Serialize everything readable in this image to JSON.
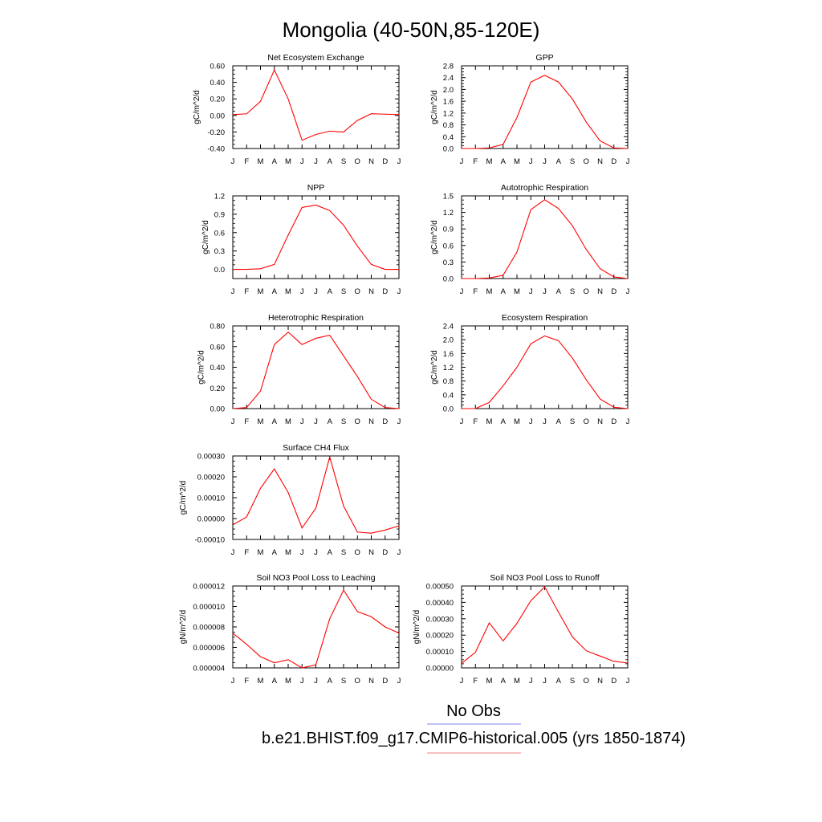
{
  "title": "Mongolia (40-50N,85-120E)",
  "months": [
    "J",
    "F",
    "M",
    "A",
    "M",
    "J",
    "J",
    "A",
    "S",
    "O",
    "N",
    "D",
    "J"
  ],
  "legend": [
    {
      "label": "No Obs",
      "color": "#8080f0"
    },
    {
      "label": "b.e21.BHIST.f09_g17.CMIP6-historical.005 (yrs 1850-1874)",
      "color": "#f08080"
    }
  ],
  "series_color": "#ff0000",
  "chart_data": [
    {
      "type": "line",
      "title": "Net Ecosystem Exchange",
      "ylabel": "gC/m^2/d",
      "ylim": [
        -0.4,
        0.6
      ],
      "yticks": [
        -0.4,
        -0.2,
        0.0,
        0.2,
        0.4,
        0.6
      ],
      "ytick_labels": [
        "-0.40",
        "-0.20",
        "0.00",
        "0.20",
        "0.40",
        "0.60"
      ],
      "x": [
        "J",
        "F",
        "M",
        "A",
        "M",
        "J",
        "J",
        "A",
        "S",
        "O",
        "N",
        "D",
        "J"
      ],
      "values": [
        0.01,
        0.02,
        0.17,
        0.55,
        0.2,
        -0.3,
        -0.23,
        -0.19,
        -0.2,
        -0.06,
        0.02,
        0.015,
        0.01
      ]
    },
    {
      "type": "line",
      "title": "GPP",
      "ylabel": "gC/m^2/d",
      "ylim": [
        0.0,
        2.8
      ],
      "yticks": [
        0.0,
        0.4,
        0.8,
        1.2,
        1.6,
        2.0,
        2.4,
        2.8
      ],
      "ytick_labels": [
        "0.0",
        "0.4",
        "0.8",
        "1.2",
        "1.6",
        "2.0",
        "2.4",
        "2.8"
      ],
      "x": [
        "J",
        "F",
        "M",
        "A",
        "M",
        "J",
        "J",
        "A",
        "S",
        "O",
        "N",
        "D",
        "J"
      ],
      "values": [
        0.0,
        0.0,
        0.02,
        0.14,
        1.05,
        2.25,
        2.48,
        2.25,
        1.68,
        0.9,
        0.26,
        0.02,
        0.0
      ]
    },
    {
      "type": "line",
      "title": "NPP",
      "ylabel": "gC/m^2/d",
      "ylim": [
        -0.15,
        1.2
      ],
      "yticks": [
        0.0,
        0.3,
        0.6,
        0.9,
        1.2
      ],
      "ytick_labels": [
        "0.0",
        "0.3",
        "0.6",
        "0.9",
        "1.2"
      ],
      "x": [
        "J",
        "F",
        "M",
        "A",
        "M",
        "J",
        "J",
        "A",
        "S",
        "O",
        "N",
        "D",
        "J"
      ],
      "values": [
        0.0,
        0.0,
        0.01,
        0.08,
        0.56,
        1.01,
        1.05,
        0.96,
        0.72,
        0.38,
        0.08,
        0.0,
        0.0
      ]
    },
    {
      "type": "line",
      "title": "Autotrophic Respiration",
      "ylabel": "gC/m^2/d",
      "ylim": [
        0.0,
        1.5
      ],
      "yticks": [
        0.0,
        0.3,
        0.6,
        0.9,
        1.2,
        1.5
      ],
      "ytick_labels": [
        "0.0",
        "0.3",
        "0.6",
        "0.9",
        "1.2",
        "1.5"
      ],
      "x": [
        "J",
        "F",
        "M",
        "A",
        "M",
        "J",
        "J",
        "A",
        "S",
        "O",
        "N",
        "D",
        "J"
      ],
      "values": [
        0.0,
        0.0,
        0.01,
        0.06,
        0.48,
        1.25,
        1.43,
        1.27,
        0.96,
        0.53,
        0.18,
        0.03,
        0.0
      ]
    },
    {
      "type": "line",
      "title": "Heterotrophic Respiration",
      "ylabel": "gC/m^2/d",
      "ylim": [
        0.0,
        0.8
      ],
      "yticks": [
        0.0,
        0.2,
        0.4,
        0.6,
        0.8
      ],
      "ytick_labels": [
        "0.00",
        "0.20",
        "0.40",
        "0.60",
        "0.80"
      ],
      "x": [
        "J",
        "F",
        "M",
        "A",
        "M",
        "J",
        "J",
        "A",
        "S",
        "O",
        "N",
        "D",
        "J"
      ],
      "values": [
        0.0,
        0.01,
        0.17,
        0.62,
        0.74,
        0.62,
        0.68,
        0.71,
        0.51,
        0.31,
        0.09,
        0.01,
        0.0
      ]
    },
    {
      "type": "line",
      "title": "Ecosystem Respiration",
      "ylabel": "gC/m^2/d",
      "ylim": [
        0.0,
        2.4
      ],
      "yticks": [
        0.0,
        0.4,
        0.8,
        1.2,
        1.6,
        2.0,
        2.4
      ],
      "ytick_labels": [
        "0.0",
        "0.4",
        "0.8",
        "1.2",
        "1.6",
        "2.0",
        "2.4"
      ],
      "x": [
        "J",
        "F",
        "M",
        "A",
        "M",
        "J",
        "J",
        "A",
        "S",
        "O",
        "N",
        "D",
        "J"
      ],
      "values": [
        0.0,
        0.0,
        0.18,
        0.66,
        1.2,
        1.88,
        2.11,
        1.97,
        1.47,
        0.84,
        0.28,
        0.04,
        0.0
      ]
    },
    {
      "type": "line",
      "title": "Surface CH4 Flux",
      "ylabel": "gC/m^2/d",
      "ylim": [
        -0.0001,
        0.0003
      ],
      "yticks": [
        -0.0001,
        0.0,
        0.0001,
        0.0002,
        0.0003
      ],
      "ytick_labels": [
        "-0.00010",
        "0.00000",
        "0.00010",
        "0.00020",
        "0.00030"
      ],
      "x": [
        "J",
        "F",
        "M",
        "A",
        "M",
        "J",
        "J",
        "A",
        "S",
        "O",
        "N",
        "D",
        "J"
      ],
      "values": [
        -3e-05,
        8e-06,
        0.000145,
        0.000238,
        0.000125,
        -4.5e-05,
        5e-05,
        0.000295,
        6e-05,
        -6.5e-05,
        -7e-05,
        -5.5e-05,
        -3.5e-05
      ]
    },
    {
      "type": "line",
      "title": "Soil NO3 Pool Loss to Leaching",
      "ylabel": "gN/m^2/d",
      "ylim": [
        4e-06,
        1.2e-05
      ],
      "yticks": [
        4e-06,
        6e-06,
        8e-06,
        1e-05,
        1.2e-05
      ],
      "ytick_labels": [
        "0.000004",
        "0.000006",
        "0.000008",
        "0.000010",
        "0.000012"
      ],
      "x": [
        "J",
        "F",
        "M",
        "A",
        "M",
        "J",
        "J",
        "A",
        "S",
        "O",
        "N",
        "D",
        "J"
      ],
      "values": [
        7.4e-06,
        6.3e-06,
        5.1e-06,
        4.5e-06,
        4.8e-06,
        4e-06,
        4.3e-06,
        8.8e-06,
        1.16e-05,
        9.5e-06,
        9e-06,
        8e-06,
        7.4e-06
      ]
    },
    {
      "type": "line",
      "title": "Soil NO3 Pool Loss to Runoff",
      "ylabel": "gN/m^2/d",
      "ylim": [
        0.0,
        0.0005
      ],
      "yticks": [
        0.0,
        0.0001,
        0.0002,
        0.0003,
        0.0004,
        0.0005
      ],
      "ytick_labels": [
        "0.00000",
        "0.00010",
        "0.00020",
        "0.00030",
        "0.00040",
        "0.00050"
      ],
      "x": [
        "J",
        "F",
        "M",
        "A",
        "M",
        "J",
        "J",
        "A",
        "S",
        "O",
        "N",
        "D",
        "J"
      ],
      "values": [
        2.8e-05,
        9.5e-05,
        0.000275,
        0.000165,
        0.000272,
        0.00041,
        0.000495,
        0.00034,
        0.00019,
        0.000105,
        7.2e-05,
        4e-05,
        3e-05
      ]
    }
  ]
}
